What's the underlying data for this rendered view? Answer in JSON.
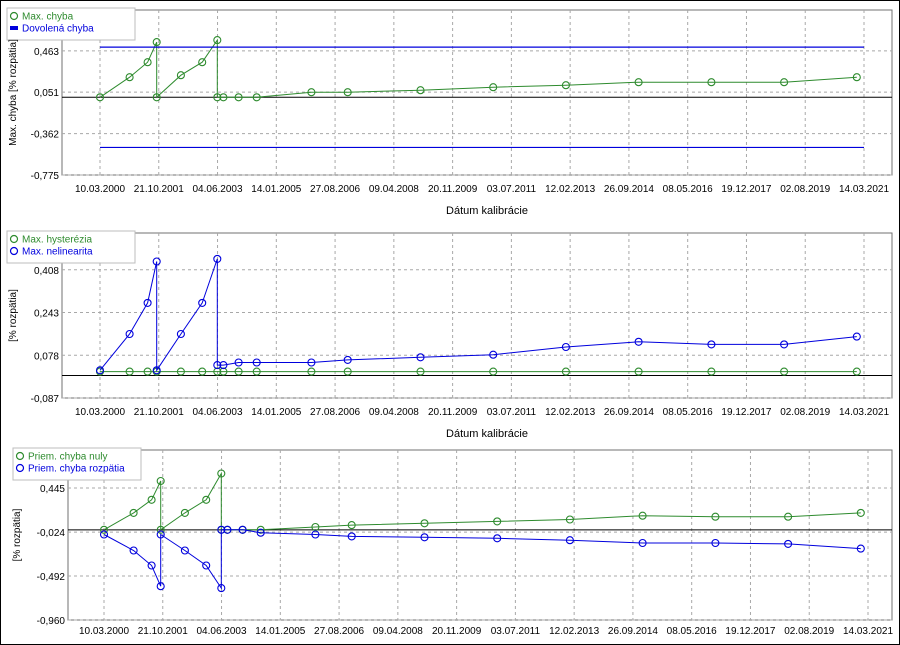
{
  "chart_data": [
    {
      "type": "line",
      "xlabel": "Dátum kalibrácie",
      "ylabel": "Max. chyba [% rozpätia]",
      "x_ticks": [
        "10.03.2000",
        "21.10.2001",
        "04.06.2003",
        "14.01.2005",
        "27.08.2006",
        "09.04.2008",
        "20.11.2009",
        "03.07.2011",
        "12.02.2013",
        "26.09.2014",
        "08.05.2016",
        "19.12.2017",
        "02.08.2019",
        "14.03.2021"
      ],
      "xlim": [
        "10.03.2000",
        "14.03.2021"
      ],
      "y_ticks": [
        "0,463",
        "0,051",
        "-0,362",
        "-0,775"
      ],
      "y_tick_values": [
        0.463,
        0.051,
        -0.362,
        -0.775
      ],
      "ylim": [
        -0.775,
        0.87
      ],
      "reference_line": 0,
      "legend_position": "top-left",
      "grid": true,
      "series": [
        {
          "name": "Max. chyba",
          "color": "#2e8b2e",
          "marker": "circle",
          "x": [
            "10.03.2000",
            "01.01.2001",
            "01.07.2001",
            "01.10.2001",
            "01.10.2001",
            "01.06.2002",
            "01.01.2003",
            "01.06.2003",
            "01.06.2003",
            "01.08.2003",
            "01.01.2004",
            "01.07.2004",
            "01.01.2006",
            "01.01.2007",
            "01.01.2009",
            "01.01.2011",
            "01.01.2013",
            "01.01.2015",
            "01.01.2017",
            "01.01.2019",
            "01.01.2021"
          ],
          "y": [
            0.0,
            0.2,
            0.35,
            0.55,
            0.0,
            0.22,
            0.35,
            0.57,
            0.0,
            0.0,
            0.0,
            0.0,
            0.05,
            0.05,
            0.07,
            0.1,
            0.12,
            0.15,
            0.15,
            0.15,
            0.2
          ]
        },
        {
          "name": "Dovolená chyba",
          "color": "#0000dd",
          "marker": "none",
          "segments": [
            {
              "x": [
                "10.03.2000",
                "14.03.2021"
              ],
              "y": [
                0.5,
                0.5
              ]
            },
            {
              "x": [
                "10.03.2000",
                "14.03.2021"
              ],
              "y": [
                -0.5,
                -0.5
              ]
            }
          ]
        }
      ]
    },
    {
      "type": "line",
      "xlabel": "Dátum kalibrácie",
      "ylabel": "[% rozpätia]",
      "x_ticks": [
        "10.03.2000",
        "21.10.2001",
        "04.06.2003",
        "14.01.2005",
        "27.08.2006",
        "09.04.2008",
        "20.11.2009",
        "03.07.2011",
        "12.02.2013",
        "26.09.2014",
        "08.05.2016",
        "19.12.2017",
        "02.08.2019",
        "14.03.2021"
      ],
      "xlim": [
        "10.03.2000",
        "14.03.2021"
      ],
      "y_ticks": [
        "0,408",
        "0,243",
        "0,078",
        "-0,087"
      ],
      "y_tick_values": [
        0.408,
        0.243,
        0.078,
        -0.087
      ],
      "ylim": [
        -0.087,
        0.55
      ],
      "reference_line": 0,
      "legend_position": "top-left",
      "grid": true,
      "series": [
        {
          "name": "Max. hysterézia",
          "color": "#2e8b2e",
          "marker": "circle",
          "x": [
            "10.03.2000",
            "01.01.2001",
            "01.07.2001",
            "01.10.2001",
            "01.06.2002",
            "01.01.2003",
            "01.06.2003",
            "01.08.2003",
            "01.01.2004",
            "01.07.2004",
            "01.01.2006",
            "01.01.2007",
            "01.01.2009",
            "01.01.2011",
            "01.01.2013",
            "01.01.2015",
            "01.01.2017",
            "01.01.2019",
            "01.01.2021"
          ],
          "y": [
            0.015,
            0.015,
            0.015,
            0.015,
            0.015,
            0.015,
            0.015,
            0.015,
            0.015,
            0.015,
            0.015,
            0.015,
            0.015,
            0.015,
            0.015,
            0.015,
            0.015,
            0.015,
            0.015
          ]
        },
        {
          "name": "Max. nelinearita",
          "color": "#0000dd",
          "marker": "circle",
          "x": [
            "10.03.2000",
            "01.01.2001",
            "01.07.2001",
            "01.10.2001",
            "01.10.2001",
            "01.06.2002",
            "01.01.2003",
            "01.06.2003",
            "01.06.2003",
            "01.08.2003",
            "01.01.2004",
            "01.07.2004",
            "01.01.2006",
            "01.01.2007",
            "01.01.2009",
            "01.01.2011",
            "01.01.2013",
            "01.01.2015",
            "01.01.2017",
            "01.01.2019",
            "01.01.2021"
          ],
          "y": [
            0.02,
            0.16,
            0.28,
            0.44,
            0.02,
            0.16,
            0.28,
            0.45,
            0.04,
            0.04,
            0.05,
            0.05,
            0.05,
            0.06,
            0.07,
            0.08,
            0.11,
            0.13,
            0.12,
            0.12,
            0.15
          ]
        }
      ]
    },
    {
      "type": "line",
      "xlabel": "",
      "ylabel": "[% rozpätia]",
      "x_ticks": [
        "10.03.2000",
        "21.10.2001",
        "04.06.2003",
        "14.01.2005",
        "27.08.2006",
        "09.04.2008",
        "20.11.2009",
        "03.07.2011",
        "12.02.2013",
        "26.09.2014",
        "08.05.2016",
        "19.12.2017",
        "02.08.2019",
        "14.03.2021"
      ],
      "xlim": [
        "10.03.2000",
        "14.03.2021"
      ],
      "y_ticks": [
        "0,445",
        "-0,024",
        "-0,492",
        "-0,960"
      ],
      "y_tick_values": [
        0.445,
        -0.024,
        -0.492,
        -0.96
      ],
      "ylim": [
        -0.96,
        0.85
      ],
      "reference_line": 0,
      "legend_position": "top-left",
      "grid": true,
      "series": [
        {
          "name": "Priem. chyba nuly",
          "color": "#2e8b2e",
          "marker": "circle",
          "x": [
            "10.03.2000",
            "01.01.2001",
            "01.07.2001",
            "01.10.2001",
            "01.10.2001",
            "01.06.2002",
            "01.01.2003",
            "01.06.2003",
            "01.06.2003",
            "01.08.2003",
            "01.01.2004",
            "01.07.2004",
            "01.01.2006",
            "01.01.2007",
            "01.01.2009",
            "01.01.2011",
            "01.01.2013",
            "01.01.2015",
            "01.01.2017",
            "01.01.2019",
            "01.01.2021"
          ],
          "y": [
            0.0,
            0.18,
            0.32,
            0.52,
            0.0,
            0.18,
            0.32,
            0.6,
            0.0,
            0.0,
            0.0,
            0.0,
            0.03,
            0.05,
            0.07,
            0.09,
            0.11,
            0.15,
            0.14,
            0.14,
            0.18
          ]
        },
        {
          "name": "Priem. chyba rozpätia",
          "color": "#0000dd",
          "marker": "circle",
          "x": [
            "10.03.2000",
            "01.01.2001",
            "01.07.2001",
            "01.10.2001",
            "01.10.2001",
            "01.06.2002",
            "01.01.2003",
            "01.06.2003",
            "01.06.2003",
            "01.08.2003",
            "01.01.2004",
            "01.07.2004",
            "01.01.2006",
            "01.01.2007",
            "01.01.2009",
            "01.01.2011",
            "01.01.2013",
            "01.01.2015",
            "01.01.2017",
            "01.01.2019",
            "01.01.2021"
          ],
          "y": [
            -0.05,
            -0.22,
            -0.38,
            -0.6,
            -0.05,
            -0.22,
            -0.38,
            -0.62,
            0.0,
            0.0,
            0.0,
            -0.03,
            -0.05,
            -0.07,
            -0.08,
            -0.09,
            -0.11,
            -0.14,
            -0.14,
            -0.15,
            -0.2
          ]
        }
      ]
    }
  ]
}
